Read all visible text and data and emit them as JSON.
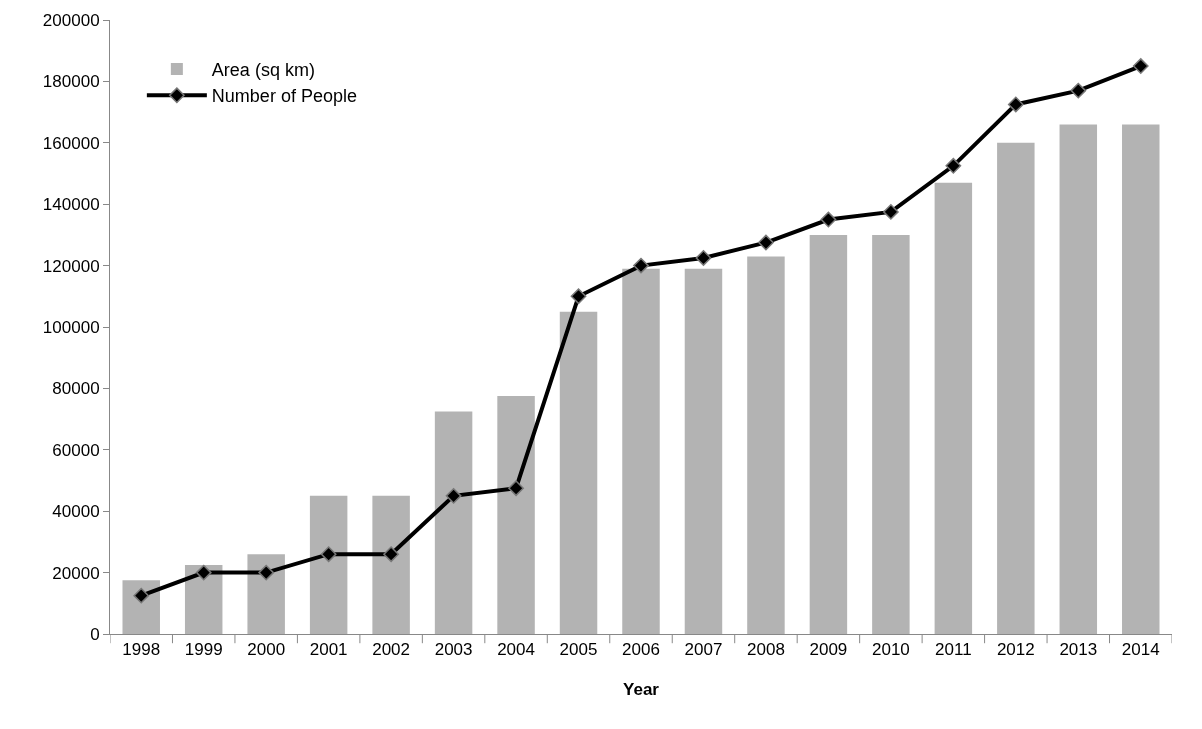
{
  "chart_data": {
    "type": "bar",
    "xlabel": "Year",
    "categories": [
      "1998",
      "1999",
      "2000",
      "2001",
      "2002",
      "2003",
      "2004",
      "2005",
      "2006",
      "2007",
      "2008",
      "2009",
      "2010",
      "2011",
      "2012",
      "2013",
      "2014"
    ],
    "series": [
      {
        "name": "Area (sq km)",
        "color": "#b3b3b3",
        "values": [
          17500,
          22500,
          26000,
          45000,
          45000,
          72500,
          77500,
          105000,
          119000,
          119000,
          123000,
          130000,
          130000,
          147000,
          160000,
          166000,
          166000
        ]
      },
      {
        "name": "Number of People",
        "type": "line",
        "color": "#000000",
        "values": [
          12500,
          20000,
          20000,
          26000,
          26000,
          45000,
          47500,
          110000,
          120000,
          122500,
          127500,
          135000,
          137500,
          152500,
          172500,
          177000,
          185000
        ]
      }
    ],
    "ylim": [
      0,
      200000
    ],
    "yticks": [
      0,
      20000,
      40000,
      60000,
      80000,
      100000,
      120000,
      140000,
      160000,
      180000,
      200000
    ],
    "grid": false,
    "legend": "top left",
    "marker": "diamond",
    "line_style": "solid"
  }
}
